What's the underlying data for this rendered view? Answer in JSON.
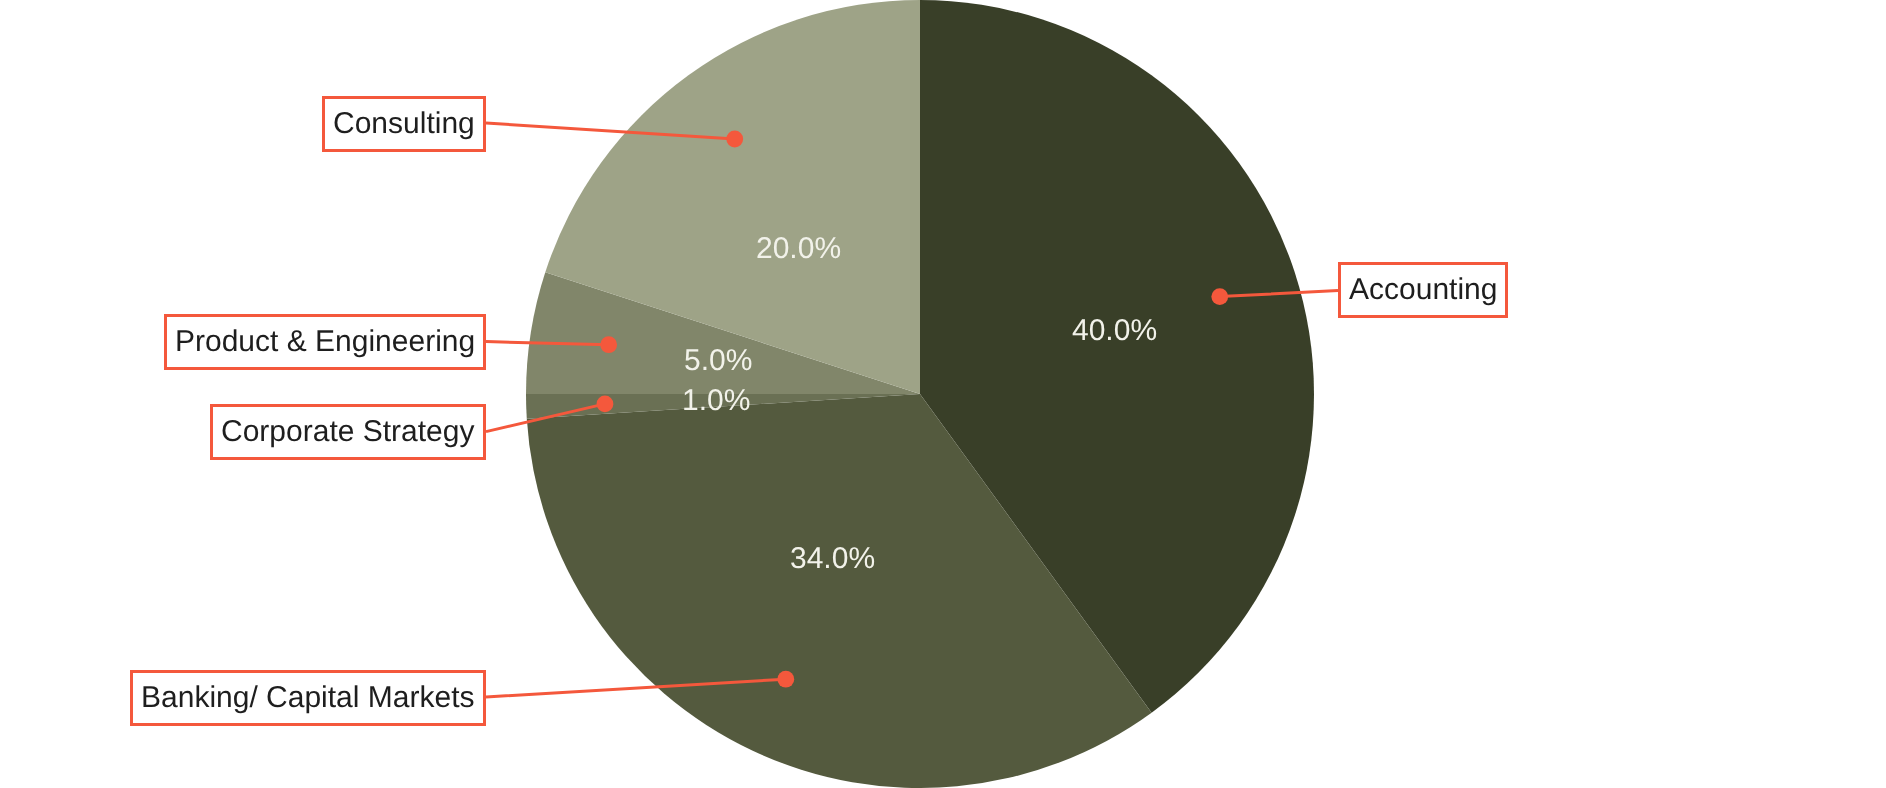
{
  "chart_data": {
    "type": "pie",
    "categories": [
      "Accounting",
      "Banking/ Capital Markets",
      "Corporate Strategy",
      "Product & Engineering",
      "Consulting"
    ],
    "values": [
      40,
      34,
      1,
      5,
      20
    ],
    "value_labels": [
      "40.0%",
      "34.0%",
      "1.0%",
      "5.0%",
      "20.0%"
    ],
    "colors": [
      "#393f28",
      "#545a3e",
      "#6a7054",
      "#81866a",
      "#9ea387"
    ],
    "legend": false
  }
}
